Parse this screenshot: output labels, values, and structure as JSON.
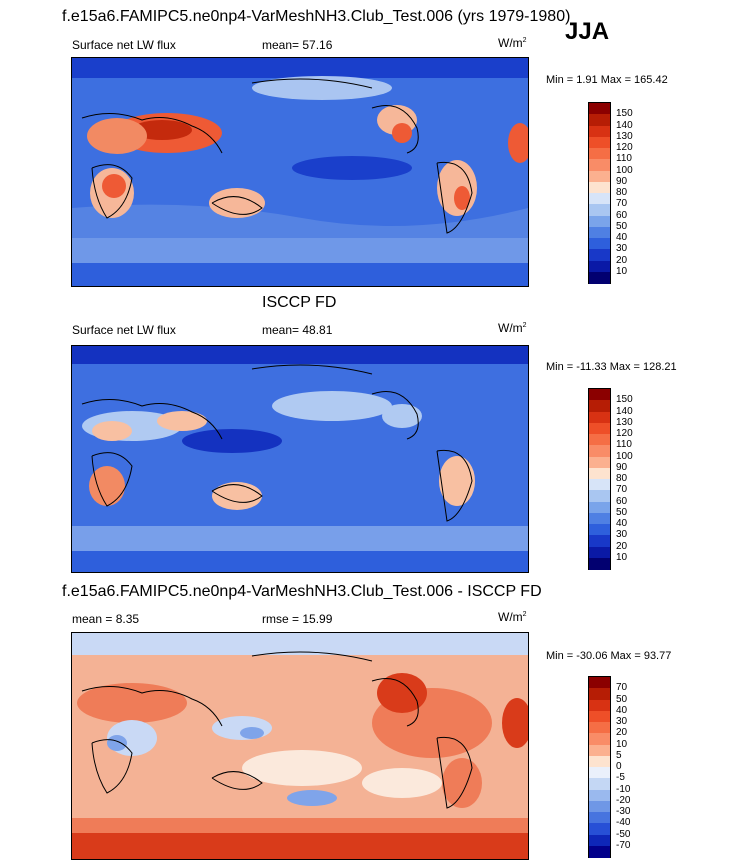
{
  "season": "JJA",
  "panels": [
    {
      "title": "f.e15a6.FAMIPC5.ne0np4-VarMeshNH3.Club_Test.006 (yrs 1979-1980)",
      "left_label": "Surface net LW flux",
      "mid_label": "mean=  57.16",
      "units_base": "W/m",
      "units_exp": "2",
      "minmax": "Min =   1.91 Max = 165.42",
      "colorbar": {
        "levels": [
          "150",
          "140",
          "130",
          "120",
          "110",
          "100",
          "90",
          "80",
          "70",
          "60",
          "50",
          "40",
          "30",
          "20",
          "10"
        ],
        "colors": [
          "#8b0000",
          "#b61d05",
          "#d83213",
          "#ee4f28",
          "#f56e45",
          "#f98c67",
          "#fbb08f",
          "#fde3cf",
          "#d7e4f8",
          "#a9c6f1",
          "#7aa4ea",
          "#4f80e3",
          "#2e5fdc",
          "#1838c8",
          "#0a19a6",
          "#020070"
        ]
      }
    },
    {
      "title": "ISCCP FD",
      "left_label": "Surface net LW flux",
      "mid_label": "mean=  48.81",
      "units_base": "W/m",
      "units_exp": "2",
      "minmax": "Min = -11.33 Max = 128.21",
      "colorbar": {
        "levels": [
          "150",
          "140",
          "130",
          "120",
          "110",
          "100",
          "90",
          "80",
          "70",
          "60",
          "50",
          "40",
          "30",
          "20",
          "10"
        ],
        "colors": [
          "#8b0000",
          "#b61d05",
          "#d83213",
          "#ee4f28",
          "#f56e45",
          "#f98c67",
          "#fbb08f",
          "#fde3cf",
          "#d7e4f8",
          "#a9c6f1",
          "#7aa4ea",
          "#4f80e3",
          "#2e5fdc",
          "#1838c8",
          "#0a19a6",
          "#020070"
        ]
      }
    },
    {
      "title": "f.e15a6.FAMIPC5.ne0np4-VarMeshNH3.Club_Test.006 - ISCCP FD",
      "left_label": "mean =   8.35",
      "mid_label": "rmse =   15.99",
      "units_base": "W/m",
      "units_exp": "2",
      "minmax": "Min = -30.06 Max =  93.77",
      "colorbar": {
        "levels": [
          "70",
          "50",
          "40",
          "30",
          "20",
          "10",
          "5",
          "0",
          "-5",
          "-10",
          "-20",
          "-30",
          "-40",
          "-50",
          "-70"
        ],
        "colors": [
          "#8b0000",
          "#b61d05",
          "#d83213",
          "#ee4f28",
          "#f56e45",
          "#f98c67",
          "#fbb08f",
          "#fde3cf",
          "#eaf0fb",
          "#c4d7f4",
          "#9ab9ee",
          "#6f97e6",
          "#4774df",
          "#2750d6",
          "#0e27b8",
          "#02008a"
        ]
      }
    }
  ],
  "map_colors": {
    "panel1": {
      "base": "#3d6fe0",
      "deep": "#1a3fcb",
      "mid": "#6f98e8",
      "light": "#aac5f1",
      "warm1": "#f6b799",
      "warm2": "#ee5a35",
      "warm3": "#c42a0d"
    },
    "panel2": {
      "base": "#3e6fe0",
      "deep": "#1432c0",
      "mid": "#789fea",
      "light": "#b0caf2",
      "warm1": "#f8c0a2",
      "warm2": "#f28a63"
    },
    "panel3": {
      "base": "#f4b295",
      "mid": "#ef7c58",
      "deep": "#d93b1a",
      "cool1": "#c9d9f5",
      "cool2": "#7fa4ea",
      "cool3": "#2e55d6",
      "white": "#fbe9dc"
    }
  }
}
